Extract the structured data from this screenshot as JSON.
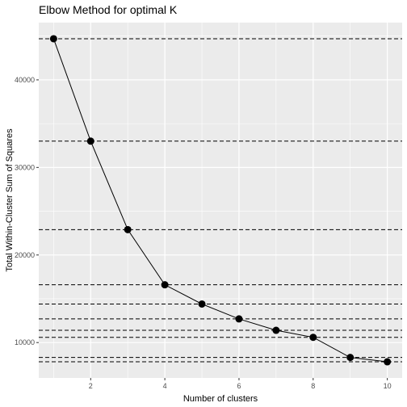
{
  "chart_data": {
    "type": "line",
    "title": "Elbow Method for optimal K",
    "xlabel": "Number of clusters",
    "ylabel": "Total Within-Cluster Sum of Squares",
    "x": [
      1,
      2,
      3,
      4,
      5,
      6,
      7,
      8,
      9,
      10
    ],
    "y": [
      44700,
      33000,
      22900,
      16600,
      14400,
      12700,
      11400,
      10600,
      8300,
      7800
    ],
    "xlim": [
      0.6,
      10.4
    ],
    "ylim": [
      5960,
      46540
    ],
    "xticks": [
      2,
      4,
      6,
      8,
      10
    ],
    "yticks": [
      10000,
      20000,
      30000,
      40000
    ],
    "xtick_labels": [
      "2",
      "4",
      "6",
      "8",
      "10"
    ],
    "ytick_labels": [
      "10000",
      "20000",
      "30000",
      "40000"
    ],
    "hlines": "dashed horizontal reference line at each y value",
    "grid": true,
    "panel_background": "#ebebeb",
    "grid_color": "#ffffff",
    "line_color": "#000000",
    "point_color": "#000000"
  }
}
